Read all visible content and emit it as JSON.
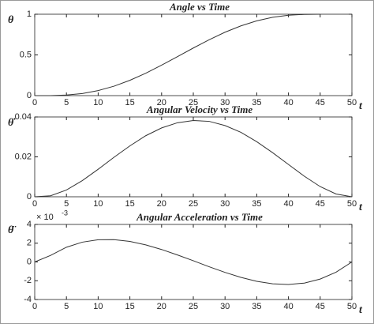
{
  "chart_data": [
    {
      "type": "line",
      "title": "Angle vs Time",
      "ylabel": "θ",
      "xlabel": "t",
      "x": [
        0,
        2.5,
        5,
        7.5,
        10,
        12.5,
        15,
        17.5,
        20,
        22.5,
        25,
        27.5,
        30,
        32.5,
        35,
        37.5,
        40,
        42.5,
        45,
        47.5,
        50
      ],
      "series": [
        {
          "color": "#333333",
          "values": [
            0,
            0,
            0.007,
            0.026,
            0.062,
            0.116,
            0.188,
            0.275,
            0.374,
            0.479,
            0.585,
            0.686,
            0.779,
            0.857,
            0.919,
            0.962,
            0.988,
            0.998,
            1,
            null,
            null
          ]
        }
      ],
      "xlim": [
        0,
        50
      ],
      "xticks": [
        0,
        5,
        10,
        15,
        20,
        25,
        30,
        35,
        40,
        45,
        50
      ],
      "ylim": [
        0,
        1
      ],
      "yticks": [
        0,
        0.5,
        1
      ],
      "grid": false
    },
    {
      "type": "line",
      "title": "Angular Velocity vs Time",
      "ylabel": "θ̇",
      "xlabel": "t",
      "x": [
        0,
        2.5,
        5,
        7.5,
        10,
        12.5,
        15,
        17.5,
        20,
        22.5,
        25,
        27.5,
        30,
        32.5,
        35,
        37.5,
        40,
        42.5,
        45,
        47.5,
        50
      ],
      "series": [
        {
          "color": "#333333",
          "values": [
            0,
            0.0005,
            0.0034,
            0.0081,
            0.0138,
            0.0198,
            0.0255,
            0.0306,
            0.0345,
            0.0371,
            0.0382,
            0.0378,
            0.0357,
            0.0323,
            0.0276,
            0.0221,
            0.0162,
            0.0103,
            0.0051,
            0.0014,
            0
          ]
        }
      ],
      "xlim": [
        0,
        50
      ],
      "xticks": [
        0,
        5,
        10,
        15,
        20,
        25,
        30,
        35,
        40,
        45,
        50
      ],
      "ylim": [
        0,
        0.04
      ],
      "yticks": [
        0,
        0.02,
        0.04
      ],
      "grid": false
    },
    {
      "type": "line",
      "title": "Angular Acceleration vs Time",
      "ylabel": "θ̈",
      "xlabel": "t",
      "yexponent": {
        "base": "× 10",
        "power": "-3"
      },
      "x": [
        0,
        2.5,
        5,
        7.5,
        10,
        12.5,
        15,
        17.5,
        20,
        22.5,
        25,
        27.5,
        30,
        32.5,
        35,
        37.5,
        40,
        42.5,
        45,
        47.5,
        50
      ],
      "series": [
        {
          "color": "#333333",
          "values": [
            0,
            0.7,
            1.57,
            2.11,
            2.37,
            2.38,
            2.19,
            1.82,
            1.33,
            0.75,
            0.13,
            -0.51,
            -1.11,
            -1.64,
            -2.06,
            -2.33,
            -2.4,
            -2.25,
            -1.82,
            -1.09,
            0
          ]
        }
      ],
      "xlim": [
        0,
        50
      ],
      "xticks": [
        0,
        5,
        10,
        15,
        20,
        25,
        30,
        35,
        40,
        45,
        50
      ],
      "ylim": [
        -4,
        4
      ],
      "yticks": [
        -4,
        -2,
        0,
        2,
        4
      ],
      "grid": false
    }
  ]
}
